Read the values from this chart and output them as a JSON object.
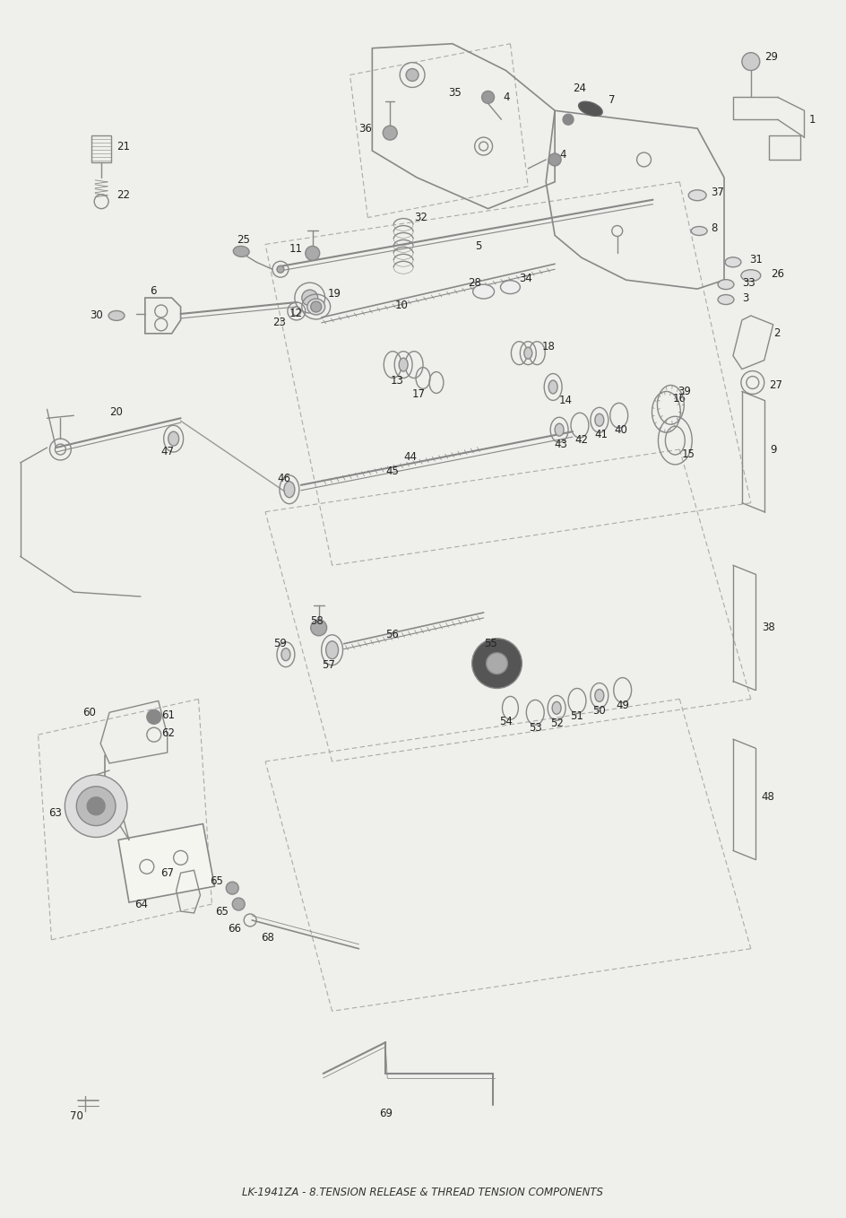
{
  "title": "LK-1941ZA - 8.TENSION RELEASE & THREAD TENSION COMPONENTS",
  "background_color": "#efefeb",
  "figsize": [
    9.44,
    13.58
  ],
  "dpi": 100
}
